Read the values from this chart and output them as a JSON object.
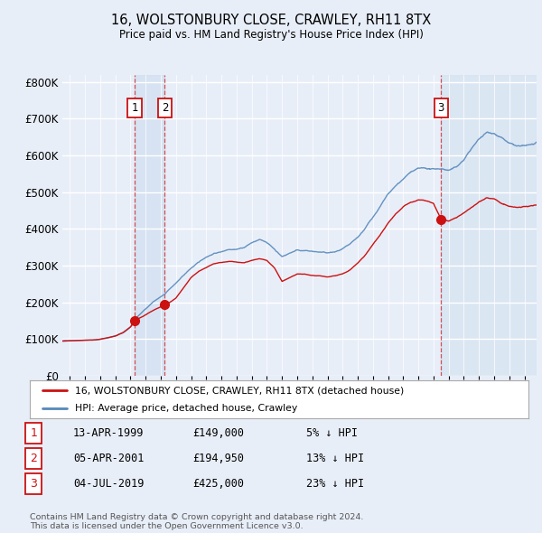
{
  "title": "16, WOLSTONBURY CLOSE, CRAWLEY, RH11 8TX",
  "subtitle": "Price paid vs. HM Land Registry's House Price Index (HPI)",
  "ylim": [
    0,
    820000
  ],
  "yticks": [
    0,
    100000,
    200000,
    300000,
    400000,
    500000,
    600000,
    700000,
    800000
  ],
  "ytick_labels": [
    "£0",
    "£100K",
    "£200K",
    "£300K",
    "£400K",
    "£500K",
    "£600K",
    "£700K",
    "£800K"
  ],
  "background_color": "#e8eef8",
  "plot_bg_color": "#e8eef8",
  "grid_color": "#ffffff",
  "hpi_color": "#5588bb",
  "price_color": "#cc1111",
  "shade_color": "#dde8f5",
  "sale1_date_x": 1999.28,
  "sale1_price": 149000,
  "sale2_date_x": 2001.26,
  "sale2_price": 194950,
  "sale3_date_x": 2019.5,
  "sale3_price": 425000,
  "legend_price_label": "16, WOLSTONBURY CLOSE, CRAWLEY, RH11 8TX (detached house)",
  "legend_hpi_label": "HPI: Average price, detached house, Crawley",
  "table_rows": [
    {
      "num": "1",
      "date": "13-APR-1999",
      "price": "£149,000",
      "pct": "5% ↓ HPI"
    },
    {
      "num": "2",
      "date": "05-APR-2001",
      "price": "£194,950",
      "pct": "13% ↓ HPI"
    },
    {
      "num": "3",
      "date": "04-JUL-2019",
      "price": "£425,000",
      "pct": "23% ↓ HPI"
    }
  ],
  "footer": "Contains HM Land Registry data © Crown copyright and database right 2024.\nThis data is licensed under the Open Government Licence v3.0.",
  "xmin": 1994.5,
  "xmax": 2025.8,
  "hpi_anchors": [
    [
      1994.5,
      97000
    ],
    [
      1995.0,
      98000
    ],
    [
      1995.5,
      99000
    ],
    [
      1996.0,
      100000
    ],
    [
      1996.5,
      101000
    ],
    [
      1997.0,
      103000
    ],
    [
      1997.5,
      107000
    ],
    [
      1998.0,
      112000
    ],
    [
      1998.5,
      120000
    ],
    [
      1999.0,
      135000
    ],
    [
      1999.28,
      157000
    ],
    [
      1999.5,
      165000
    ],
    [
      2000.0,
      185000
    ],
    [
      2000.5,
      205000
    ],
    [
      2001.0,
      218000
    ],
    [
      2001.26,
      224000
    ],
    [
      2001.5,
      235000
    ],
    [
      2002.0,
      255000
    ],
    [
      2002.5,
      275000
    ],
    [
      2003.0,
      295000
    ],
    [
      2003.5,
      310000
    ],
    [
      2004.0,
      325000
    ],
    [
      2004.5,
      335000
    ],
    [
      2005.0,
      340000
    ],
    [
      2005.5,
      348000
    ],
    [
      2006.0,
      350000
    ],
    [
      2006.5,
      355000
    ],
    [
      2007.0,
      368000
    ],
    [
      2007.5,
      375000
    ],
    [
      2008.0,
      368000
    ],
    [
      2008.5,
      350000
    ],
    [
      2009.0,
      330000
    ],
    [
      2009.5,
      340000
    ],
    [
      2010.0,
      350000
    ],
    [
      2010.5,
      348000
    ],
    [
      2011.0,
      345000
    ],
    [
      2011.5,
      343000
    ],
    [
      2012.0,
      340000
    ],
    [
      2012.5,
      342000
    ],
    [
      2013.0,
      348000
    ],
    [
      2013.5,
      358000
    ],
    [
      2014.0,
      375000
    ],
    [
      2014.5,
      400000
    ],
    [
      2015.0,
      430000
    ],
    [
      2015.5,
      460000
    ],
    [
      2016.0,
      490000
    ],
    [
      2016.5,
      510000
    ],
    [
      2017.0,
      530000
    ],
    [
      2017.5,
      548000
    ],
    [
      2018.0,
      555000
    ],
    [
      2018.5,
      553000
    ],
    [
      2019.0,
      550000
    ],
    [
      2019.5,
      552000
    ],
    [
      2020.0,
      548000
    ],
    [
      2020.5,
      555000
    ],
    [
      2021.0,
      575000
    ],
    [
      2021.5,
      605000
    ],
    [
      2022.0,
      630000
    ],
    [
      2022.5,
      648000
    ],
    [
      2023.0,
      648000
    ],
    [
      2023.5,
      635000
    ],
    [
      2024.0,
      618000
    ],
    [
      2024.5,
      608000
    ],
    [
      2025.0,
      605000
    ],
    [
      2025.8,
      610000
    ]
  ],
  "price_anchors": [
    [
      1994.5,
      95000
    ],
    [
      1995.0,
      96000
    ],
    [
      1995.5,
      97000
    ],
    [
      1996.0,
      98000
    ],
    [
      1996.5,
      99000
    ],
    [
      1997.0,
      101000
    ],
    [
      1997.5,
      105000
    ],
    [
      1998.0,
      109000
    ],
    [
      1998.5,
      118000
    ],
    [
      1999.0,
      133000
    ],
    [
      1999.28,
      149000
    ],
    [
      1999.5,
      155000
    ],
    [
      2000.0,
      165000
    ],
    [
      2000.5,
      178000
    ],
    [
      2001.0,
      188000
    ],
    [
      2001.26,
      194950
    ],
    [
      2001.5,
      198000
    ],
    [
      2002.0,
      212000
    ],
    [
      2002.5,
      240000
    ],
    [
      2003.0,
      268000
    ],
    [
      2003.5,
      285000
    ],
    [
      2004.0,
      295000
    ],
    [
      2004.5,
      305000
    ],
    [
      2005.0,
      308000
    ],
    [
      2005.5,
      312000
    ],
    [
      2006.0,
      310000
    ],
    [
      2006.5,
      308000
    ],
    [
      2007.0,
      315000
    ],
    [
      2007.5,
      320000
    ],
    [
      2008.0,
      315000
    ],
    [
      2008.5,
      295000
    ],
    [
      2009.0,
      258000
    ],
    [
      2009.5,
      268000
    ],
    [
      2010.0,
      278000
    ],
    [
      2010.5,
      278000
    ],
    [
      2011.0,
      275000
    ],
    [
      2011.5,
      272000
    ],
    [
      2012.0,
      268000
    ],
    [
      2012.5,
      272000
    ],
    [
      2013.0,
      278000
    ],
    [
      2013.5,
      290000
    ],
    [
      2014.0,
      308000
    ],
    [
      2014.5,
      330000
    ],
    [
      2015.0,
      358000
    ],
    [
      2015.5,
      385000
    ],
    [
      2016.0,
      415000
    ],
    [
      2016.5,
      440000
    ],
    [
      2017.0,
      460000
    ],
    [
      2017.5,
      472000
    ],
    [
      2018.0,
      478000
    ],
    [
      2018.5,
      475000
    ],
    [
      2019.0,
      468000
    ],
    [
      2019.5,
      425000
    ],
    [
      2020.0,
      418000
    ],
    [
      2020.5,
      425000
    ],
    [
      2021.0,
      438000
    ],
    [
      2021.5,
      455000
    ],
    [
      2022.0,
      470000
    ],
    [
      2022.5,
      480000
    ],
    [
      2023.0,
      478000
    ],
    [
      2023.5,
      468000
    ],
    [
      2024.0,
      460000
    ],
    [
      2024.5,
      455000
    ],
    [
      2025.0,
      458000
    ],
    [
      2025.8,
      462000
    ]
  ]
}
